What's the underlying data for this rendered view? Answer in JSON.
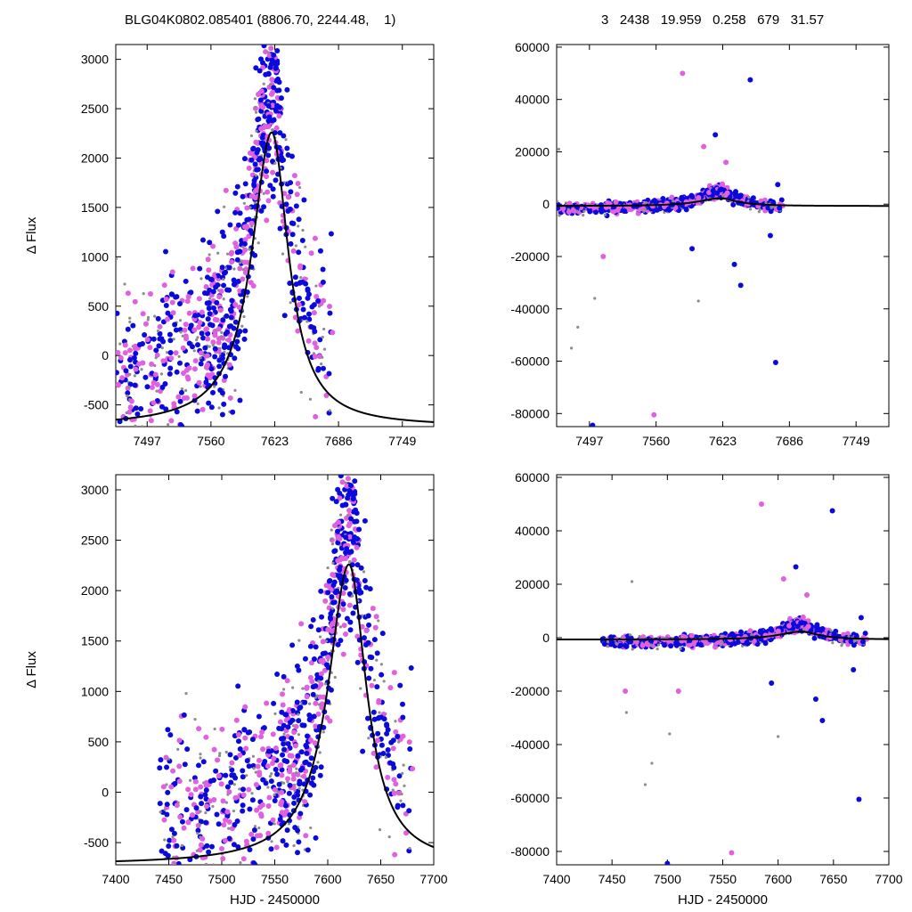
{
  "header": {
    "left": "BLG04K0802.085401 (8806.70, 2244.48,    1)",
    "right": "3   2438   19.959   0.258   679   31.57"
  },
  "colors": {
    "gray": "#8c8c8c",
    "magenta": "#e060e0",
    "blue": "#0a0adc",
    "model": "#000000"
  },
  "chart_data": [
    {
      "type": "scatter",
      "panel": "top-left",
      "xlabel": "",
      "ylabel": "Δ Flux",
      "xlim": [
        7466,
        7780
      ],
      "ylim": [
        -720,
        3150
      ],
      "xticks": [
        7497,
        7560,
        7623,
        7686,
        7749
      ],
      "yticks": [
        -500,
        0,
        500,
        1000,
        1500,
        2000,
        2500,
        3000
      ],
      "model": {
        "t0": 7620,
        "peak": 2260,
        "baseline": -720,
        "tE_left": 24,
        "tE_right": 20
      }
    },
    {
      "type": "scatter",
      "panel": "top-right",
      "xlabel": "",
      "ylabel": "",
      "xlim": [
        7466,
        7780
      ],
      "ylim": [
        -85000,
        61000
      ],
      "xticks": [
        7497,
        7560,
        7623,
        7686,
        7749
      ],
      "yticks": [
        -80000,
        -60000,
        -40000,
        -20000,
        0,
        20000,
        40000,
        60000
      ],
      "model": {
        "t0": 7620,
        "peak": 2260,
        "baseline": -720,
        "tE_left": 24,
        "tE_right": 20
      }
    },
    {
      "type": "scatter",
      "panel": "bottom-left",
      "xlabel": "HJD - 2450000",
      "ylabel": "Δ Flux",
      "xlim": [
        7400,
        7700
      ],
      "ylim": [
        -720,
        3150
      ],
      "xticks": [
        7400,
        7450,
        7500,
        7550,
        7600,
        7650,
        7700
      ],
      "yticks": [
        -500,
        0,
        500,
        1000,
        1500,
        2000,
        2500,
        3000
      ],
      "model": {
        "t0": 7620,
        "peak": 2260,
        "baseline": -720,
        "tE_left": 24,
        "tE_right": 20
      }
    },
    {
      "type": "scatter",
      "panel": "bottom-right",
      "xlabel": "HJD - 2450000",
      "ylabel": "",
      "xlim": [
        7400,
        7700
      ],
      "ylim": [
        -85000,
        61000
      ],
      "xticks": [
        7400,
        7450,
        7500,
        7550,
        7600,
        7650,
        7700
      ],
      "yticks": [
        -80000,
        -60000,
        -40000,
        -20000,
        0,
        20000,
        40000,
        60000
      ],
      "model": {
        "t0": 7620,
        "peak": 2260,
        "baseline": -720,
        "tE_left": 24,
        "tE_right": 20
      }
    }
  ],
  "wide_outliers": [
    [
      7463,
      -28000,
      "gray"
    ],
    [
      7462,
      -20000,
      "magenta"
    ],
    [
      7468,
      21000,
      "gray"
    ],
    [
      7480,
      -55000,
      "gray"
    ],
    [
      7486,
      -47000,
      "gray"
    ],
    [
      7500,
      -84500,
      "blue"
    ],
    [
      7502,
      -36000,
      "gray"
    ],
    [
      7558,
      -80500,
      "magenta"
    ],
    [
      7585,
      50000,
      "magenta"
    ],
    [
      7594,
      -17000,
      "blue"
    ],
    [
      7600,
      -37000,
      "gray"
    ],
    [
      7605,
      22000,
      "magenta"
    ],
    [
      7616,
      26500,
      "blue"
    ],
    [
      7626,
      16000,
      "magenta"
    ],
    [
      7634,
      -23000,
      "blue"
    ],
    [
      7640,
      -31000,
      "blue"
    ],
    [
      7649,
      47500,
      "blue"
    ],
    [
      7673,
      -60500,
      "blue"
    ],
    [
      7675,
      7500,
      "blue"
    ],
    [
      7668,
      -12000,
      "blue"
    ],
    [
      7510,
      -20000,
      "magenta"
    ]
  ]
}
